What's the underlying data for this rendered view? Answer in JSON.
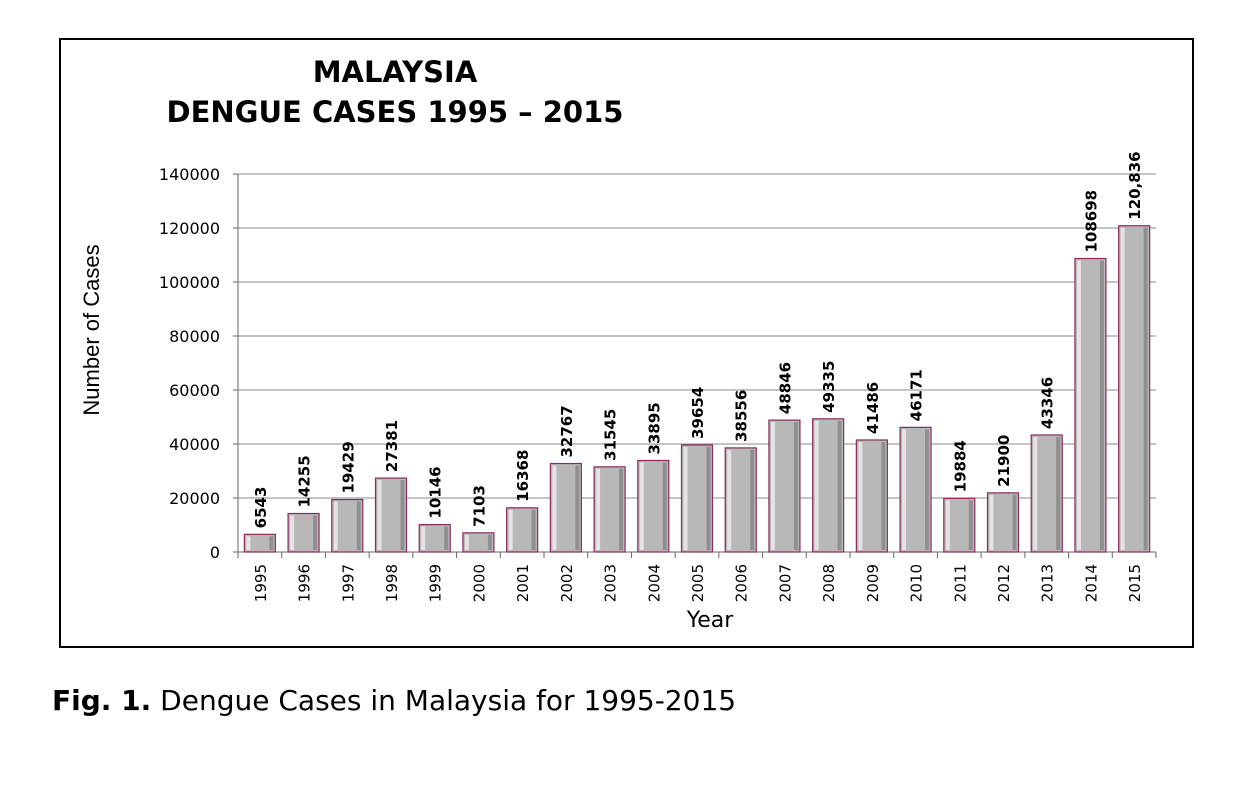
{
  "chart_data": {
    "type": "bar",
    "title_lines": [
      "MALAYSIA",
      "DENGUE CASES 1995 – 2015"
    ],
    "xlabel": "Year",
    "ylabel": "Number of Cases",
    "ylim": [
      0,
      140000
    ],
    "yticks": [
      "0",
      "20000",
      "40000",
      "60000",
      "80000",
      "100000",
      "120000",
      "140000"
    ],
    "categories": [
      "1995",
      "1996",
      "1997",
      "1998",
      "1999",
      "2000",
      "2001",
      "2002",
      "2003",
      "2004",
      "2005",
      "2006",
      "2007",
      "2008",
      "2009",
      "2010",
      "2011",
      "2012",
      "2013",
      "2014",
      "2015"
    ],
    "values": [
      6543,
      14255,
      19429,
      27381,
      10146,
      7103,
      16368,
      32767,
      31545,
      33895,
      39654,
      38556,
      48846,
      49335,
      41486,
      46171,
      19884,
      21900,
      43346,
      108698,
      120836
    ],
    "data_labels": [
      "6543",
      "14255",
      "19429",
      "27381",
      "10146",
      "7103",
      "16368",
      "32767",
      "31545",
      "33895",
      "39654",
      "38556",
      "48846",
      "49335",
      "41486",
      "46171",
      "19884",
      "21900",
      "43346",
      "108698",
      "120,836"
    ],
    "grid": true,
    "bar_color": "#b8b8b8",
    "bar_edge_color": "#8c2a5c"
  },
  "caption": {
    "prefix": "Fig. 1.",
    "text": " Dengue Cases in Malaysia for 1995-2015"
  }
}
